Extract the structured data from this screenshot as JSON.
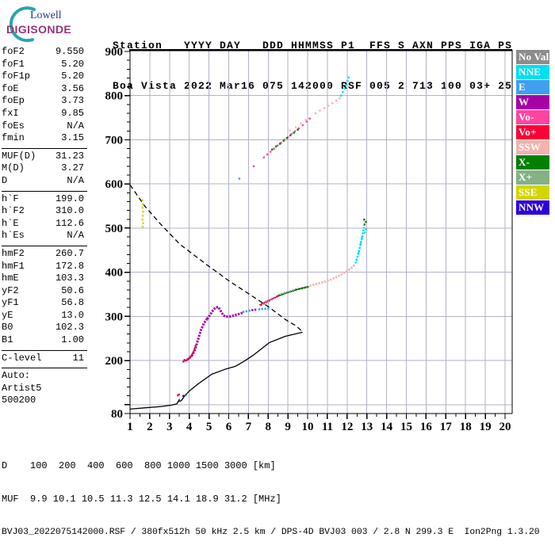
{
  "logo": {
    "line1": "Lowell",
    "line2": "DIGISONDE",
    "arc_color": "#2aa5ad"
  },
  "header": {
    "line1": "Station   YYYY DAY   DDD HHMMSS P1  FFS S AXN PPS IGA PS",
    "line2": "Boa Vista 2022 Mar16 075 142000 RSF 005 2 713 100 03+ 25"
  },
  "params": [
    {
      "label": "foF2",
      "value": "9.550"
    },
    {
      "label": "foF1",
      "value": "5.20"
    },
    {
      "label": "foF1p",
      "value": "5.20"
    },
    {
      "label": "foE",
      "value": "3.56"
    },
    {
      "label": "foEp",
      "value": "3.73"
    },
    {
      "label": "fxI",
      "value": "9.85"
    },
    {
      "label": "foEs",
      "value": "N/A"
    },
    {
      "label": "fmin",
      "value": "3.15"
    },
    {
      "divider": true
    },
    {
      "label": "MUF(D)",
      "value": "31.23"
    },
    {
      "label": "M(D)",
      "value": "3.27"
    },
    {
      "label": "D",
      "value": "N/A"
    },
    {
      "divider": true
    },
    {
      "label": "h`F",
      "value": "199.0"
    },
    {
      "label": "h`F2",
      "value": "310.0"
    },
    {
      "label": "h`E",
      "value": "112.6"
    },
    {
      "label": "h`Es",
      "value": "N/A"
    },
    {
      "divider": true
    },
    {
      "label": "hmF2",
      "value": "260.7"
    },
    {
      "label": "hmF1",
      "value": "172.8"
    },
    {
      "label": "hmE",
      "value": "103.3"
    },
    {
      "label": "yF2",
      "value": "50.6"
    },
    {
      "label": "yF1",
      "value": "56.8"
    },
    {
      "label": "yE",
      "value": "13.0"
    },
    {
      "label": "B0",
      "value": "102.3"
    },
    {
      "label": "B1",
      "value": "1.00"
    },
    {
      "divider": true
    },
    {
      "label": "C-level",
      "value": "11"
    },
    {
      "divider": true
    },
    {
      "label": "Auto:",
      "value": ""
    },
    {
      "label": "Artist5",
      "value": ""
    },
    {
      "label": "500200",
      "value": ""
    }
  ],
  "legend": [
    {
      "label": "No Val",
      "color": "#8c8c8c"
    },
    {
      "label": "NNE",
      "color": "#00dff0"
    },
    {
      "label": "E",
      "color": "#3f9ff0"
    },
    {
      "label": "W",
      "color": "#a800a8"
    },
    {
      "label": "Vo-",
      "color": "#ff44a2"
    },
    {
      "label": "Vo+",
      "color": "#fb0038"
    },
    {
      "label": "SSW",
      "color": "#f2b3ae"
    },
    {
      "label": "X-",
      "color": "#008000"
    },
    {
      "label": "X+",
      "color": "#84b284"
    },
    {
      "label": "SSE",
      "color": "#d2d600"
    },
    {
      "label": "NNW",
      "color": "#2e00d9"
    }
  ],
  "footer": {
    "d_line": "D    100  200  400  600  800 1000 1500 3000 [km]",
    "muf_line": "MUF  9.9 10.1 10.5 11.3 12.5 14.1 18.9 31.2 [MHz]",
    "file_line": "BVJ03_2022075142000.RSF / 380fx512h 50 kHz 2.5 km / DPS-4D BVJ03 003 / 2.8 N 299.3 E  Ion2Png 1.3.20"
  },
  "chart_data": {
    "type": "scatter",
    "xlim": [
      1,
      20
    ],
    "ylim": [
      80,
      900
    ],
    "x_ticks": [
      1,
      2,
      3,
      4,
      5,
      6,
      7,
      8,
      9,
      10,
      11,
      12,
      13,
      14,
      15,
      16,
      17,
      18,
      19,
      20
    ],
    "y_tick_labels": [
      900,
      800,
      700,
      600,
      500,
      400,
      300,
      200,
      80
    ],
    "y_minor_step": 20,
    "grid": true,
    "grid_color": "#b2b2c6",
    "legend_position": "right",
    "muf_table": {
      "distances_km": [
        100,
        200,
        400,
        600,
        800,
        1000,
        1500,
        3000
      ],
      "muf_mhz": [
        9.9,
        10.1,
        10.5,
        11.3,
        12.5,
        14.1,
        18.9,
        31.2
      ]
    },
    "series": [
      {
        "name": "muf-transmission-curve",
        "color": "#000000",
        "mode": "dashed-line",
        "width": 1.3,
        "points": [
          [
            1.0,
            598
          ],
          [
            1.76,
            549
          ],
          [
            2.57,
            508
          ],
          [
            3.53,
            463
          ],
          [
            4.86,
            418
          ],
          [
            6.06,
            379
          ],
          [
            6.99,
            352
          ],
          [
            8.07,
            320
          ],
          [
            8.87,
            293
          ],
          [
            9.36,
            280
          ],
          [
            9.6,
            271
          ],
          [
            9.74,
            264
          ]
        ]
      },
      {
        "name": "true-height-profile",
        "color": "#000000",
        "mode": "line",
        "width": 1.3,
        "points": [
          [
            1.0,
            90
          ],
          [
            1.8,
            93
          ],
          [
            2.6,
            96
          ],
          [
            3.1,
            99
          ],
          [
            3.38,
            102
          ],
          [
            3.5,
            112
          ],
          [
            3.44,
            107
          ],
          [
            3.6,
            109
          ],
          [
            3.75,
            119
          ],
          [
            4.0,
            131
          ],
          [
            4.45,
            147
          ],
          [
            5.14,
            169
          ],
          [
            5.8,
            180
          ],
          [
            6.34,
            187
          ],
          [
            6.8,
            199
          ],
          [
            7.27,
            213
          ],
          [
            8.07,
            241
          ],
          [
            8.87,
            255
          ],
          [
            9.74,
            264
          ]
        ]
      },
      {
        "name": "f-trace-w-rise",
        "color": "#a800a8",
        "mode": "dotted-line",
        "width": 3,
        "points": [
          [
            3.72,
            200
          ],
          [
            3.95,
            203
          ],
          [
            4.15,
            212
          ],
          [
            4.3,
            226
          ],
          [
            4.45,
            248
          ],
          [
            4.6,
            270
          ],
          [
            4.75,
            285
          ],
          [
            4.9,
            294
          ]
        ]
      },
      {
        "name": "f-trace-voplus-rise",
        "color": "#fb0038",
        "mode": "dotted-line",
        "width": 2.2,
        "points": [
          [
            3.66,
            197
          ],
          [
            3.85,
            200
          ],
          [
            4.05,
            207
          ],
          [
            4.2,
            218
          ],
          [
            4.33,
            235
          ]
        ]
      },
      {
        "name": "f-trace-w-bump",
        "color": "#a800a8",
        "mode": "dotted-line",
        "width": 3,
        "points": [
          [
            4.9,
            294
          ],
          [
            5.05,
            303
          ],
          [
            5.2,
            314
          ],
          [
            5.35,
            321
          ],
          [
            5.48,
            321
          ],
          [
            5.6,
            312
          ],
          [
            5.72,
            303
          ],
          [
            5.85,
            299
          ],
          [
            6.1,
            300
          ],
          [
            6.4,
            304
          ],
          [
            6.7,
            308
          ]
        ]
      },
      {
        "name": "f-trace-e-seg1",
        "color": "#3f9ff0",
        "mode": "dotted-line",
        "width": 2.6,
        "points": [
          [
            6.7,
            310
          ],
          [
            6.95,
            312
          ],
          [
            7.15,
            314
          ]
        ]
      },
      {
        "name": "f-trace-w-mid",
        "color": "#a800a8",
        "mode": "dotted-line",
        "width": 2.6,
        "points": [
          [
            7.15,
            314
          ],
          [
            7.45,
            316
          ]
        ]
      },
      {
        "name": "f-trace-e-seg2",
        "color": "#3f9ff0",
        "mode": "dotted-line",
        "width": 2.6,
        "points": [
          [
            7.5,
            316
          ],
          [
            7.8,
            317
          ],
          [
            8.1,
            318
          ]
        ]
      },
      {
        "name": "f-trace-fit-line",
        "color": "#000000",
        "mode": "line",
        "width": 1,
        "points": [
          [
            7.55,
            326
          ],
          [
            8.2,
            340
          ],
          [
            8.8,
            351
          ],
          [
            9.4,
            360
          ],
          [
            10.05,
            368
          ]
        ]
      },
      {
        "name": "f-trace-voplus-mid",
        "color": "#fb0038",
        "mode": "dotted-line",
        "width": 2.4,
        "points": [
          [
            7.6,
            325
          ],
          [
            7.9,
            332
          ],
          [
            8.2,
            339
          ],
          [
            8.5,
            346
          ]
        ]
      },
      {
        "name": "f-trace-vominus-mid",
        "color": "#ff44a2",
        "mode": "dotted-line",
        "width": 2,
        "points": [
          [
            7.72,
            330
          ],
          [
            8.05,
            337
          ],
          [
            8.35,
            343
          ]
        ]
      },
      {
        "name": "f-trace-xminus-mid",
        "color": "#008000",
        "mode": "dotted-line",
        "width": 2.6,
        "points": [
          [
            8.5,
            347
          ],
          [
            8.8,
            352
          ],
          [
            9.1,
            356
          ],
          [
            9.45,
            361
          ],
          [
            9.75,
            364
          ],
          [
            10.05,
            367
          ]
        ]
      },
      {
        "name": "f-trace-xplus-mid",
        "color": "#84b284",
        "mode": "dotted-line",
        "width": 2,
        "points": [
          [
            8.62,
            351
          ],
          [
            9.0,
            356
          ],
          [
            9.3,
            360
          ]
        ]
      },
      {
        "name": "f-trace-ssw",
        "color": "#f2b3ae",
        "mode": "dotted-line",
        "width": 2.8,
        "points": [
          [
            10.1,
            369
          ],
          [
            10.5,
            374
          ],
          [
            10.9,
            379
          ],
          [
            11.2,
            384
          ],
          [
            11.5,
            390
          ],
          [
            11.8,
            397
          ],
          [
            12.05,
            404
          ],
          [
            12.25,
            411
          ],
          [
            12.4,
            418
          ]
        ]
      },
      {
        "name": "f-trace-nne",
        "color": "#00dff0",
        "mode": "dotted-line",
        "width": 2.6,
        "points": [
          [
            12.42,
            420
          ],
          [
            12.52,
            434
          ],
          [
            12.6,
            448
          ],
          [
            12.66,
            460
          ],
          [
            12.72,
            472
          ],
          [
            12.78,
            484
          ],
          [
            12.82,
            494
          ],
          [
            12.86,
            502
          ]
        ]
      },
      {
        "name": "f-trace-nne-dots",
        "color": "#00dff0",
        "mode": "dots",
        "size": 2.4,
        "points": [
          [
            12.48,
            428
          ],
          [
            12.58,
            444
          ],
          [
            12.68,
            464
          ],
          [
            12.75,
            479
          ],
          [
            12.95,
            497
          ],
          [
            12.9,
            490
          ]
        ]
      },
      {
        "name": "f-trace-xminus-tip",
        "color": "#008000",
        "mode": "dots",
        "size": 2.4,
        "points": [
          [
            12.88,
            508
          ],
          [
            12.95,
            514
          ],
          [
            12.86,
            519
          ]
        ]
      },
      {
        "name": "e-region-voplus-dots",
        "color": "#fb0038",
        "mode": "dots",
        "size": 2.4,
        "points": [
          [
            3.42,
            121
          ],
          [
            3.48,
            123
          ]
        ]
      },
      {
        "name": "e-region-nnw-dot",
        "color": "#2e00d9",
        "mode": "dots",
        "size": 2.4,
        "points": [
          [
            3.7,
            120
          ]
        ]
      },
      {
        "name": "e-region-xminus-dot",
        "color": "#008000",
        "mode": "dots",
        "size": 2.4,
        "points": [
          [
            3.84,
            123
          ]
        ]
      },
      {
        "name": "spread-sse-column",
        "color": "#d2d600",
        "mode": "dots",
        "size": 2.4,
        "points": [
          [
            1.63,
            563
          ],
          [
            1.65,
            554
          ],
          [
            1.63,
            546
          ],
          [
            1.66,
            537
          ],
          [
            1.64,
            528
          ],
          [
            1.63,
            519
          ],
          [
            1.66,
            511
          ],
          [
            1.64,
            503
          ]
        ]
      },
      {
        "name": "hop2-e-dot",
        "color": "#3f9ff0",
        "mode": "dots",
        "size": 2.4,
        "points": [
          [
            6.54,
            612
          ]
        ]
      },
      {
        "name": "hop2-vominus-lone",
        "color": "#ff44a2",
        "mode": "dots",
        "size": 2.4,
        "points": [
          [
            7.27,
            640
          ]
        ]
      },
      {
        "name": "hop2-vominus-band",
        "color": "#ff44a2",
        "mode": "dots",
        "size": 2.4,
        "points": [
          [
            7.78,
            660
          ],
          [
            7.95,
            667
          ],
          [
            8.12,
            673
          ],
          [
            8.3,
            680
          ],
          [
            8.48,
            687
          ],
          [
            8.65,
            693
          ],
          [
            8.82,
            700
          ],
          [
            9.0,
            706
          ],
          [
            9.18,
            713
          ],
          [
            9.36,
            719
          ],
          [
            9.55,
            726
          ],
          [
            9.75,
            733
          ],
          [
            9.95,
            741
          ],
          [
            10.1,
            748
          ]
        ]
      },
      {
        "name": "hop2-xminus-band",
        "color": "#008000",
        "mode": "dots",
        "size": 2.4,
        "points": [
          [
            8.2,
            678
          ],
          [
            8.4,
            685
          ],
          [
            8.6,
            691
          ],
          [
            8.78,
            698
          ],
          [
            8.95,
            704
          ],
          [
            9.12,
            710
          ],
          [
            9.3,
            716
          ],
          [
            9.5,
            723
          ]
        ]
      },
      {
        "name": "hop2-ssw-sparse",
        "color": "#f2b3ae",
        "mode": "dots",
        "size": 2.2,
        "points": [
          [
            9.1,
            721
          ],
          [
            9.4,
            729
          ],
          [
            9.65,
            737
          ],
          [
            9.9,
            745
          ]
        ]
      },
      {
        "name": "hop2-ssw-run",
        "color": "#f2b3ae",
        "mode": "dots",
        "size": 2.4,
        "points": [
          [
            10.4,
            760
          ],
          [
            10.62,
            766
          ],
          [
            10.85,
            772
          ],
          [
            11.05,
            777
          ],
          [
            11.25,
            783
          ],
          [
            11.45,
            789
          ],
          [
            11.62,
            794
          ]
        ]
      },
      {
        "name": "hop2-nne-run",
        "color": "#00dff0",
        "mode": "dots",
        "size": 2.4,
        "points": [
          [
            11.68,
            800
          ],
          [
            11.78,
            808
          ],
          [
            11.88,
            816
          ],
          [
            11.95,
            824
          ],
          [
            12.02,
            833
          ],
          [
            12.08,
            841
          ]
        ]
      }
    ]
  }
}
